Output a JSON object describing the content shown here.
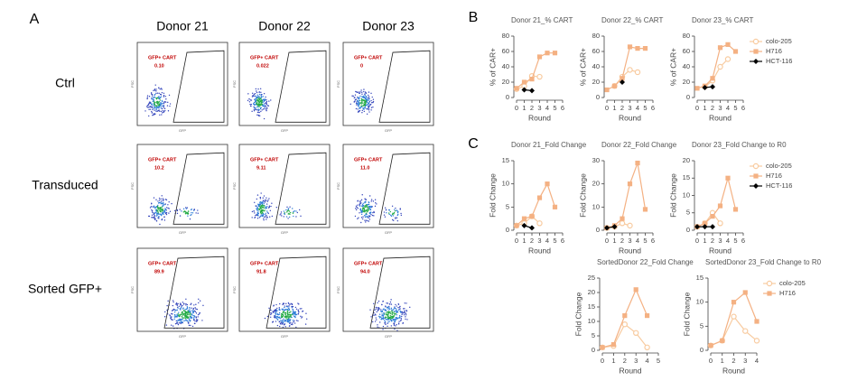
{
  "panel_labels": {
    "a": "A",
    "b": "B",
    "c": "C"
  },
  "panel_a": {
    "columns": [
      "Donor 21",
      "Donor 22",
      "Donor 23"
    ],
    "x_axis": "GFP",
    "y_axis": "FSC",
    "rows": [
      {
        "label": "Ctrl",
        "gates": [
          {
            "name": "GFP+ CART",
            "value": "0.10"
          },
          {
            "name": "GFP+ CART",
            "value": "0.022"
          },
          {
            "name": "GFP+ CART",
            "value": "0"
          }
        ]
      },
      {
        "label": "Transduced",
        "gates": [
          {
            "name": "GFP+ CART",
            "value": "10.2"
          },
          {
            "name": "GFP+ CART",
            "value": "9.11"
          },
          {
            "name": "GFP+ CART",
            "value": "11.0"
          }
        ]
      },
      {
        "label": "Sorted GFP+",
        "gates": [
          {
            "name": "GFP+ CART",
            "value": "89.9"
          },
          {
            "name": "GFP+ CART",
            "value": "91.8"
          },
          {
            "name": "GFP+ CART",
            "value": "94.0"
          }
        ]
      }
    ]
  },
  "chart_data": [
    {
      "type": "line",
      "title": "Donor 21_% CART",
      "x_label": "Round",
      "y_label": "% of CAR+",
      "x": [
        0,
        1,
        2,
        3,
        4,
        5
      ],
      "xlim": [
        0,
        6
      ],
      "xticks": [
        0,
        1,
        2,
        3,
        4,
        5,
        6
      ],
      "ylim": [
        0,
        80
      ],
      "yticks": [
        0,
        20,
        40,
        60,
        80
      ],
      "series": [
        {
          "color": "#f8cba0",
          "marker": "circle-open",
          "values": [
            11,
            15,
            28,
            27,
            null,
            null
          ]
        },
        {
          "color": "#f4b183",
          "marker": "square",
          "values": [
            12,
            20,
            24,
            53,
            58,
            58
          ]
        },
        {
          "color": "#000000",
          "marker": "diamond",
          "values": [
            null,
            10,
            9,
            null,
            null,
            null
          ]
        }
      ]
    },
    {
      "type": "line",
      "title": "Donor 22_% CART",
      "x_label": "Round",
      "y_label": "% of CAR+",
      "x": [
        0,
        1,
        2,
        3,
        4,
        5
      ],
      "xlim": [
        0,
        6
      ],
      "xticks": [
        0,
        1,
        2,
        3,
        4,
        5,
        6
      ],
      "ylim": [
        0,
        80
      ],
      "yticks": [
        0,
        20,
        40,
        60,
        80
      ],
      "series": [
        {
          "color": "#f8cba0",
          "marker": "circle-open",
          "values": [
            null,
            15,
            27,
            36,
            33,
            null
          ]
        },
        {
          "color": "#f4b183",
          "marker": "square",
          "values": [
            10,
            15,
            25,
            66,
            64,
            64
          ]
        },
        {
          "color": "#000000",
          "marker": "diamond",
          "values": [
            null,
            null,
            20,
            null,
            null,
            null
          ]
        }
      ]
    },
    {
      "type": "line",
      "title": "Donor 23_% CART",
      "x_label": "Round",
      "y_label": "% of CAR+",
      "x": [
        0,
        1,
        2,
        3,
        4,
        5
      ],
      "xlim": [
        0,
        6
      ],
      "xticks": [
        0,
        1,
        2,
        3,
        4,
        5,
        6
      ],
      "ylim": [
        0,
        80
      ],
      "yticks": [
        0,
        20,
        40,
        60,
        80
      ],
      "legend": "right",
      "series": [
        {
          "name": "colo-205",
          "color": "#f8cba0",
          "marker": "circle-open",
          "values": [
            null,
            14,
            22,
            40,
            50,
            null
          ]
        },
        {
          "name": "H716",
          "color": "#f4b183",
          "marker": "square",
          "values": [
            12,
            15,
            25,
            65,
            69,
            60
          ]
        },
        {
          "name": "HCT-116",
          "color": "#000000",
          "marker": "diamond",
          "values": [
            null,
            13,
            14,
            null,
            null,
            null
          ]
        }
      ]
    },
    {
      "type": "line",
      "title": "Donor 21_Fold Change",
      "x_label": "Round",
      "y_label": "Fold Change",
      "x": [
        0,
        1,
        2,
        3,
        4,
        5
      ],
      "xlim": [
        0,
        6
      ],
      "xticks": [
        0,
        1,
        2,
        3,
        4,
        5,
        6
      ],
      "ylim": [
        0,
        15
      ],
      "yticks": [
        0,
        5,
        10,
        15
      ],
      "series": [
        {
          "color": "#f8cba0",
          "marker": "circle-open",
          "values": [
            1,
            1.5,
            3,
            1.5,
            null,
            null
          ]
        },
        {
          "color": "#f4b183",
          "marker": "square",
          "values": [
            1,
            2.5,
            3,
            7,
            10,
            5
          ]
        },
        {
          "color": "#000000",
          "marker": "diamond",
          "values": [
            null,
            1,
            0.5,
            null,
            null,
            null
          ]
        }
      ]
    },
    {
      "type": "line",
      "title": "Donor 22_Fold Change",
      "x_label": "Round",
      "y_label": "Fold Change",
      "x": [
        0,
        1,
        2,
        3,
        4,
        5
      ],
      "xlim": [
        0,
        6
      ],
      "xticks": [
        0,
        1,
        2,
        3,
        4,
        5,
        6
      ],
      "ylim": [
        0,
        30
      ],
      "yticks": [
        0,
        10,
        20,
        30
      ],
      "series": [
        {
          "color": "#f8cba0",
          "marker": "circle-open",
          "values": [
            1,
            1.5,
            3,
            2,
            null,
            null
          ]
        },
        {
          "color": "#f4b183",
          "marker": "square",
          "values": [
            1,
            2,
            5,
            20,
            29,
            9
          ]
        },
        {
          "color": "#000000",
          "marker": "diamond",
          "values": [
            1,
            1.5,
            null,
            null,
            null,
            null
          ]
        }
      ]
    },
    {
      "type": "line",
      "title": "Donor 23_Fold Change to R0",
      "x_label": "Round",
      "y_label": "Fold Change",
      "x": [
        0,
        1,
        2,
        3,
        4,
        5
      ],
      "xlim": [
        0,
        6
      ],
      "xticks": [
        0,
        1,
        2,
        3,
        4,
        5,
        6
      ],
      "ylim": [
        0,
        20
      ],
      "yticks": [
        0,
        5,
        10,
        15,
        20
      ],
      "legend": "right",
      "series": [
        {
          "name": "colo-205",
          "color": "#f8cba0",
          "marker": "circle-open",
          "values": [
            1,
            2,
            5,
            2,
            null,
            null
          ]
        },
        {
          "name": "H716",
          "color": "#f4b183",
          "marker": "square",
          "values": [
            1,
            2,
            4,
            7,
            15,
            6
          ]
        },
        {
          "name": "HCT-116",
          "color": "#000000",
          "marker": "diamond",
          "values": [
            1,
            1,
            1,
            null,
            null,
            null
          ]
        }
      ]
    },
    {
      "type": "line",
      "title": "SortedDonor 22_Fold Change",
      "x_label": "Round",
      "y_label": "Fold Change",
      "x": [
        0,
        1,
        2,
        3,
        4
      ],
      "xlim": [
        0,
        5
      ],
      "xticks": [
        0,
        1,
        2,
        3,
        4,
        5
      ],
      "ylim": [
        0,
        25
      ],
      "yticks": [
        0,
        5,
        10,
        15,
        20,
        25
      ],
      "series": [
        {
          "color": "#f8cba0",
          "marker": "circle-open",
          "values": [
            1,
            1.5,
            9,
            6,
            1
          ]
        },
        {
          "color": "#f4b183",
          "marker": "square",
          "values": [
            1,
            2,
            12,
            21,
            12
          ]
        }
      ]
    },
    {
      "type": "line",
      "title": "SortedDonor 23_Fold Change to R0",
      "x_label": "Round",
      "y_label": "Fold Change",
      "x": [
        0,
        1,
        2,
        3,
        4
      ],
      "xlim": [
        0,
        4
      ],
      "xticks": [
        0,
        1,
        2,
        3,
        4
      ],
      "ylim": [
        0,
        15
      ],
      "yticks": [
        0,
        5,
        10,
        15
      ],
      "legend": "right",
      "series": [
        {
          "name": "colo-205",
          "color": "#f8cba0",
          "marker": "circle-open",
          "values": [
            1,
            2,
            7,
            4,
            2
          ]
        },
        {
          "name": "H716",
          "color": "#f4b183",
          "marker": "square",
          "values": [
            1,
            2,
            10,
            12,
            6
          ]
        }
      ]
    }
  ]
}
